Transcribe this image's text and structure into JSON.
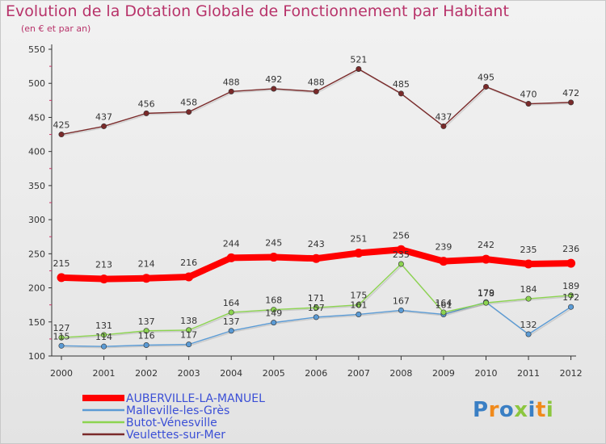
{
  "header": {
    "title": "Evolution de la Dotation Globale de Fonctionnement par Habitant",
    "subtitle": "(en € et par an)"
  },
  "logo": {
    "text": "Proxiti",
    "letters": [
      "P",
      "r",
      "o",
      "x",
      "i",
      "t",
      "i"
    ]
  },
  "colors": {
    "title": "#b8336a",
    "axis": "#333333",
    "label": "#333333",
    "grid_tick": "#cc3366"
  },
  "chart_data": {
    "type": "line",
    "title": "Evolution de la Dotation Globale de Fonctionnement par Habitant",
    "subtitle": "(en € et par an)",
    "x": [
      "2000",
      "2001",
      "2002",
      "2003",
      "2004",
      "2005",
      "2006",
      "2007",
      "2008",
      "2009",
      "2010",
      "2011",
      "2012"
    ],
    "ylim": [
      100,
      550
    ],
    "yticks": [
      100,
      150,
      200,
      250,
      300,
      350,
      400,
      450,
      500,
      550
    ],
    "grid": false,
    "legend_position": "bottom-left",
    "series": [
      {
        "name": "AUBERVILLE-LA-MANUEL",
        "color": "#ff0000",
        "label_color": "#333333",
        "values": [
          215,
          213,
          214,
          216,
          244,
          245,
          243,
          251,
          256,
          239,
          242,
          235,
          236
        ]
      },
      {
        "name": "Malleville-les-Grès",
        "color": "#5b9bd5",
        "label_color": "#333333",
        "values": [
          115,
          114,
          116,
          117,
          137,
          149,
          157,
          161,
          167,
          161,
          179,
          132,
          172
        ]
      },
      {
        "name": "Butot-Vénesville",
        "color": "#8cd450",
        "label_color": "#333333",
        "values": [
          127,
          131,
          137,
          138,
          164,
          168,
          171,
          175,
          235,
          164,
          178,
          184,
          189
        ]
      },
      {
        "name": "Veulettes-sur-Mer",
        "color": "#7a2a2a",
        "label_color": "#333333",
        "values": [
          425,
          437,
          456,
          458,
          488,
          492,
          488,
          521,
          485,
          437,
          495,
          470,
          472
        ]
      }
    ]
  }
}
